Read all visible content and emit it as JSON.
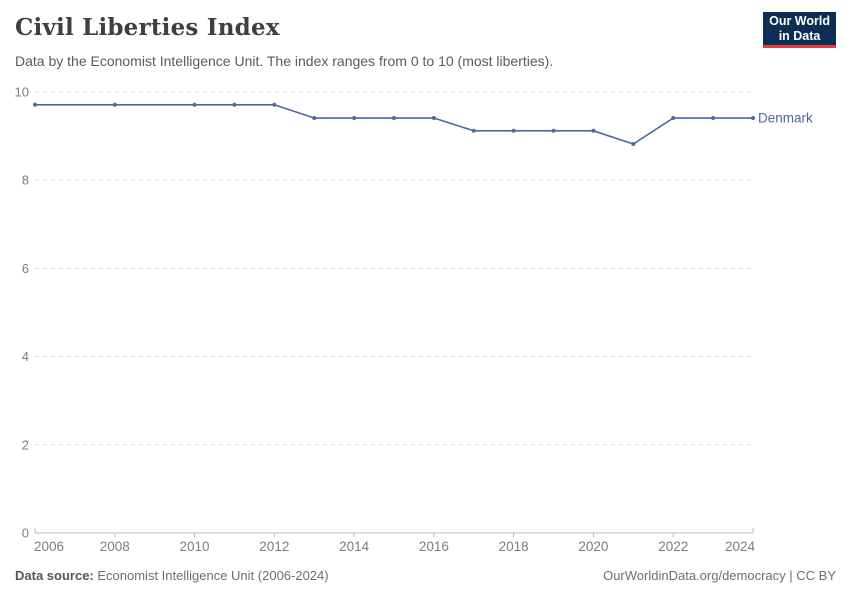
{
  "header": {
    "title": "Civil Liberties Index",
    "subtitle": "Data by the Economist Intelligence Unit. The index ranges from 0 to 10 (most liberties).",
    "logo": {
      "line1": "Our World",
      "line2": "in Data",
      "bg": "#0d2d54",
      "accent": "#e63e36"
    }
  },
  "chart_data": {
    "type": "line",
    "title": "Civil Liberties Index",
    "x": [
      2006,
      2008,
      2010,
      2011,
      2012,
      2013,
      2014,
      2015,
      2016,
      2017,
      2018,
      2019,
      2020,
      2021,
      2022,
      2023,
      2024
    ],
    "series": [
      {
        "name": "Denmark",
        "color": "#4C6A9C",
        "values": [
          9.71,
          9.71,
          9.71,
          9.71,
          9.71,
          9.41,
          9.41,
          9.41,
          9.41,
          9.12,
          9.12,
          9.12,
          9.12,
          8.82,
          9.41,
          9.41,
          9.41
        ]
      }
    ],
    "xlim": [
      2006,
      2024
    ],
    "ylim": [
      0,
      10
    ],
    "x_ticks": [
      2006,
      2008,
      2010,
      2012,
      2014,
      2016,
      2018,
      2020,
      2022,
      2024
    ],
    "y_ticks": [
      0,
      2,
      4,
      6,
      8,
      10
    ],
    "grid": "horizontal-dashed",
    "legend": "end-of-line-label"
  },
  "footer": {
    "source_label": "Data source:",
    "source_text": " Economist Intelligence Unit (2006-2024)",
    "url": "OurWorldinData.org/democracy",
    "separator": " | ",
    "license": "CC BY"
  },
  "colors": {
    "line": "#4C6A9C",
    "grid": "#dcdcdc",
    "axis": "#b8b8b8",
    "tick_label": "#7d7d7d"
  }
}
